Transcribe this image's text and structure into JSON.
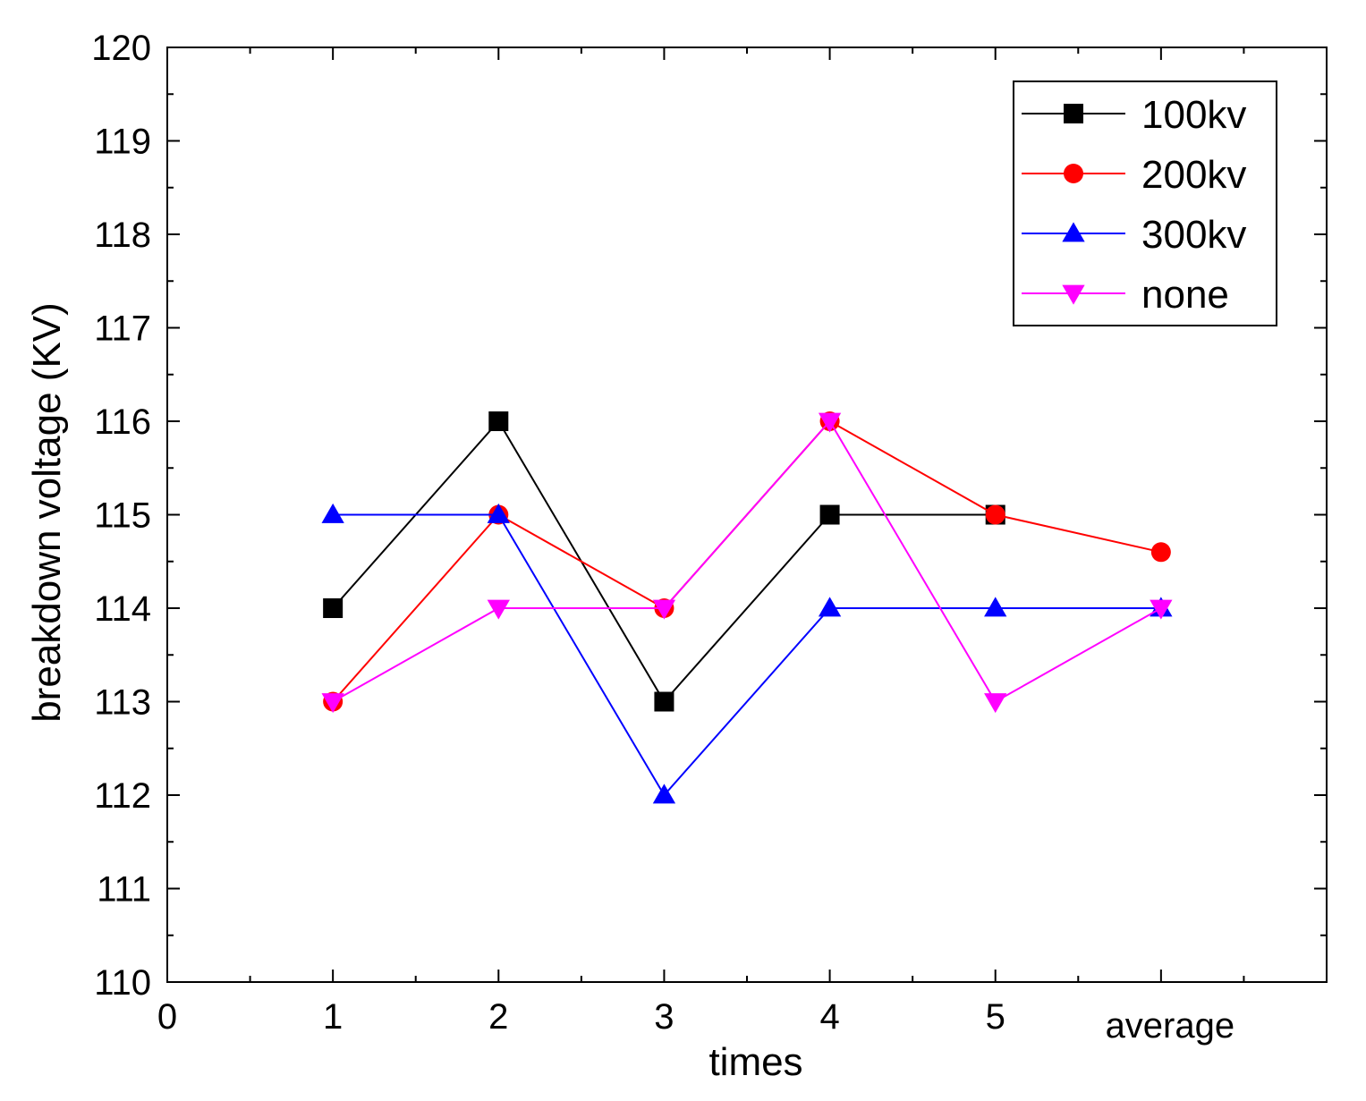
{
  "chart_data": {
    "type": "line",
    "title": "",
    "xlabel": "times",
    "ylabel": "breakdown voltage (KV)",
    "xlim": [
      0,
      7
    ],
    "ylim": [
      110,
      120
    ],
    "x_ticks": [
      0,
      1,
      2,
      3,
      4,
      5
    ],
    "x_tick_labels": [
      "0",
      "1",
      "2",
      "3",
      "4",
      "5"
    ],
    "x_extra_label": {
      "x": 6,
      "text": "average"
    },
    "y_ticks": [
      110,
      111,
      112,
      113,
      114,
      115,
      116,
      117,
      118,
      119,
      120
    ],
    "y_tick_labels": [
      "110",
      "111",
      "112",
      "113",
      "114",
      "115",
      "116",
      "117",
      "118",
      "119",
      "120"
    ],
    "grid": false,
    "legend_position": "top-right",
    "x": [
      1,
      2,
      3,
      4,
      5,
      6
    ],
    "series": [
      {
        "name": "100kv",
        "color": "#000000",
        "marker": "square",
        "values": [
          114,
          116,
          113,
          115,
          115,
          null
        ]
      },
      {
        "name": "200kv",
        "color": "#ff0000",
        "marker": "circle",
        "values": [
          113,
          115,
          114,
          116,
          115,
          114.6
        ]
      },
      {
        "name": "300kv",
        "color": "#0000ff",
        "marker": "triangle-up",
        "values": [
          115,
          115,
          112,
          114,
          114,
          114
        ]
      },
      {
        "name": "none",
        "color": "#ff00ff",
        "marker": "triangle-down",
        "values": [
          113,
          114,
          114,
          116,
          113,
          114
        ]
      }
    ]
  }
}
